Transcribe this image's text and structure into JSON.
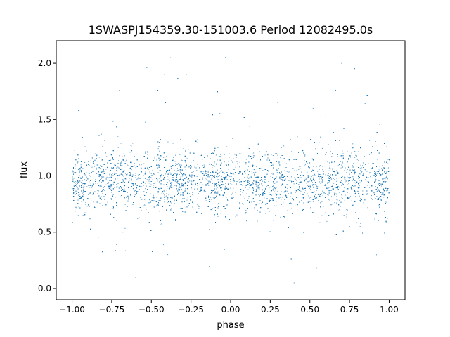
{
  "chart_data": {
    "type": "scatter",
    "title": "1SWASPJ154359.30-151003.6 Period 12082495.0s",
    "xlabel": "phase",
    "ylabel": "flux",
    "xlim": [
      -1.1,
      1.1
    ],
    "ylim": [
      -0.1,
      2.2
    ],
    "xticks": [
      -1.0,
      -0.75,
      -0.5,
      -0.25,
      0.0,
      0.25,
      0.5,
      0.75,
      1.0
    ],
    "xtick_labels": [
      "−1.00",
      "−0.75",
      "−0.50",
      "−0.25",
      "0.00",
      "0.25",
      "0.50",
      "0.75",
      "1.00"
    ],
    "yticks": [
      0.0,
      0.5,
      1.0,
      1.5,
      2.0
    ],
    "ytick_labels": [
      "0.0",
      "0.5",
      "1.0",
      "1.5",
      "2.0"
    ],
    "grid": false,
    "marker_color": "#1f77b4",
    "series": [
      {
        "points_sample": [
          [
            -0.98,
            0.95
          ],
          [
            -0.92,
            1.12
          ],
          [
            -0.88,
            0.78
          ],
          [
            -0.85,
            1.7
          ],
          [
            -0.8,
            0.9
          ],
          [
            -0.72,
            1.05
          ],
          [
            -0.68,
            0.5
          ],
          [
            -0.55,
            0.95
          ],
          [
            -0.45,
            1.3
          ],
          [
            -0.38,
            2.05
          ],
          [
            -0.3,
            0.85
          ],
          [
            -0.28,
            1.9
          ],
          [
            -0.2,
            1.0
          ],
          [
            -0.12,
            0.7
          ],
          [
            -0.05,
            1.15
          ],
          [
            0.0,
            0.95
          ],
          [
            0.1,
            0.6
          ],
          [
            0.18,
            1.05
          ],
          [
            0.25,
            0.9
          ],
          [
            0.32,
            1.25
          ],
          [
            0.45,
            0.8
          ],
          [
            0.52,
            1.6
          ],
          [
            0.6,
            1.0
          ],
          [
            0.7,
            2.0
          ],
          [
            0.75,
            0.55
          ],
          [
            0.85,
            1.1
          ],
          [
            0.92,
            0.3
          ],
          [
            0.98,
            0.95
          ],
          [
            -0.6,
            0.1
          ],
          [
            0.4,
            0.05
          ]
        ],
        "count": 12000
      }
    ]
  }
}
